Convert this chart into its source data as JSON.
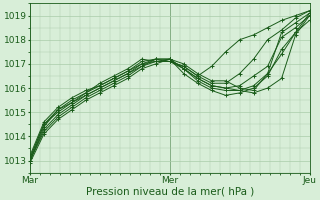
{
  "bg_color": "#d8eed8",
  "grid_color": "#aaccaa",
  "line_color": "#1a5c1a",
  "marker_color": "#1a5c1a",
  "xlabel": "Pression niveau de la mer( hPa )",
  "xtick_labels": [
    "Mar",
    "Mer",
    "Jeu"
  ],
  "xtick_positions": [
    0,
    1,
    2
  ],
  "ylim": [
    1012.5,
    1019.5
  ],
  "yticks": [
    1013,
    1014,
    1015,
    1016,
    1017,
    1018,
    1019
  ],
  "xlabel_fontsize": 7.5,
  "tick_fontsize": 6.5,
  "series": [
    [
      1013.0,
      1014.4,
      1015.1,
      1015.5,
      1015.8,
      1016.2,
      1016.5,
      1016.8,
      1017.2,
      1017.1,
      1017.1,
      1016.9,
      1016.5,
      1016.9,
      1017.5,
      1018.0,
      1018.2,
      1018.5,
      1018.8,
      1019.0,
      1019.2
    ],
    [
      1013.1,
      1014.5,
      1015.0,
      1015.4,
      1015.7,
      1016.0,
      1016.3,
      1016.6,
      1016.9,
      1017.2,
      1017.2,
      1017.0,
      1016.6,
      1016.3,
      1016.3,
      1016.0,
      1015.9,
      1016.6,
      1017.4,
      1018.3,
      1019.1
    ],
    [
      1013.0,
      1014.2,
      1014.8,
      1015.2,
      1015.6,
      1015.9,
      1016.2,
      1016.5,
      1016.9,
      1017.1,
      1017.1,
      1016.8,
      1016.4,
      1016.1,
      1016.0,
      1015.9,
      1015.8,
      1016.0,
      1016.4,
      1018.2,
      1019.0
    ],
    [
      1013.2,
      1014.6,
      1015.2,
      1015.6,
      1015.9,
      1016.1,
      1016.4,
      1016.7,
      1017.0,
      1017.2,
      1017.1,
      1016.9,
      1016.5,
      1016.2,
      1016.2,
      1016.6,
      1017.2,
      1018.0,
      1018.4,
      1018.9,
      1019.2
    ],
    [
      1013.0,
      1014.3,
      1014.9,
      1015.3,
      1015.7,
      1016.0,
      1016.3,
      1016.6,
      1017.0,
      1017.1,
      1017.2,
      1016.8,
      1016.3,
      1016.0,
      1015.9,
      1015.9,
      1016.1,
      1016.6,
      1018.3,
      1018.7,
      1019.1
    ],
    [
      1013.1,
      1014.5,
      1015.1,
      1015.4,
      1015.8,
      1016.1,
      1016.4,
      1016.7,
      1017.1,
      1017.2,
      1017.2,
      1016.8,
      1016.4,
      1016.1,
      1016.0,
      1016.1,
      1016.5,
      1016.9,
      1018.1,
      1018.5,
      1019.0
    ],
    [
      1012.9,
      1014.1,
      1014.7,
      1015.1,
      1015.5,
      1015.8,
      1016.1,
      1016.4,
      1016.8,
      1017.0,
      1017.2,
      1016.6,
      1016.2,
      1015.9,
      1015.7,
      1015.8,
      1016.0,
      1016.5,
      1017.6,
      1018.3,
      1018.8
    ]
  ]
}
